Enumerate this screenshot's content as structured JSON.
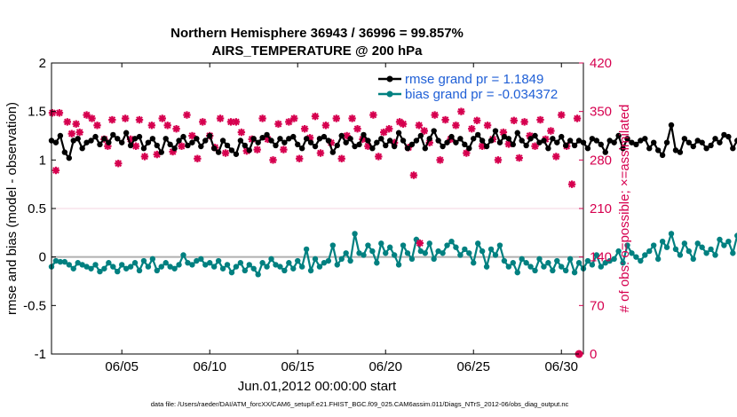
{
  "colors": {
    "rmse": "#000000",
    "bias": "#008080",
    "obs": "#d6004f",
    "zero_line": "#b0b0b0",
    "grid": "#f0c8d6",
    "legend_text": "#1f5fd6",
    "right_axis": "#d6004f"
  },
  "chart_data": {
    "type": "line",
    "title": "Northern Hemisphere 36943 / 36996 = 99.857%",
    "subtitle": "AIRS_TEMPERATURE @ 200 hPa",
    "xlabel": "Jun.01,2012 00:00:00 start",
    "ylabel_left": "rmse and bias (model - observation)",
    "ylabel_right": "# of obs: o=possible; ×=assimilated",
    "xlim": [
      1,
      31.25
    ],
    "ylim_left": [
      -1,
      2
    ],
    "ylim_right": [
      0,
      420
    ],
    "x_ticks": [
      5,
      10,
      15,
      20,
      25,
      30
    ],
    "x_tick_labels": [
      "06/05",
      "06/10",
      "06/15",
      "06/20",
      "06/25",
      "06/30"
    ],
    "y_ticks_left": [
      -1,
      -0.5,
      0,
      0.5,
      1,
      1.5,
      2
    ],
    "y_tick_labels_left": [
      "-1",
      "-0.5",
      "0",
      "0.5",
      "1",
      "1.5",
      "2"
    ],
    "y_ticks_right": [
      0,
      70,
      140,
      210,
      280,
      350,
      420
    ],
    "y_tick_labels_right": [
      "0",
      "70",
      "140",
      "210",
      "280",
      "350",
      "420"
    ],
    "x_start": 1.0,
    "x_step": 0.25,
    "series": [
      {
        "name": "rmse grand pr = 1.1849",
        "axis": "left",
        "values": [
          1.2,
          1.18,
          1.25,
          1.08,
          1.02,
          1.2,
          1.22,
          1.12,
          1.18,
          1.2,
          1.24,
          1.16,
          1.22,
          1.18,
          1.26,
          1.22,
          1.18,
          1.28,
          1.15,
          1.22,
          1.24,
          1.12,
          1.18,
          1.22,
          1.15,
          1.08,
          1.22,
          1.16,
          1.12,
          1.2,
          1.24,
          1.15,
          1.18,
          1.22,
          1.14,
          1.2,
          1.25,
          1.12,
          1.08,
          1.2,
          1.15,
          1.1,
          1.06,
          1.2,
          1.15,
          1.1,
          1.22,
          1.18,
          1.23,
          1.26,
          1.2,
          1.15,
          1.22,
          1.18,
          1.22,
          1.24,
          1.16,
          1.12,
          1.22,
          1.18,
          1.14,
          1.22,
          1.24,
          1.2,
          1.08,
          1.15,
          1.25,
          1.18,
          1.22,
          1.14,
          1.16,
          1.26,
          1.2,
          1.12,
          1.18,
          1.22,
          1.15,
          1.2,
          1.14,
          1.28,
          1.2,
          1.12,
          1.16,
          1.2,
          1.25,
          1.12,
          1.22,
          1.3,
          1.2,
          1.14,
          1.18,
          1.24,
          1.18,
          1.22,
          1.16,
          1.12,
          1.22,
          1.26,
          1.2,
          1.14,
          1.2,
          1.3,
          1.18,
          1.24,
          1.22,
          1.16,
          1.28,
          1.2,
          1.15,
          1.22,
          1.25,
          1.18,
          1.2,
          1.12,
          1.22,
          1.18,
          1.24,
          1.15,
          1.2,
          1.15,
          1.2,
          1.18,
          1.12,
          1.22,
          1.2,
          1.16,
          1.08,
          1.2,
          1.18,
          1.25,
          1.12,
          1.22,
          1.18,
          1.16,
          1.2,
          1.22,
          1.12,
          1.18,
          1.1,
          1.05,
          1.18,
          1.36,
          1.1,
          1.08,
          1.22,
          1.18,
          1.14,
          1.2,
          1.18,
          1.12,
          1.15,
          1.22,
          1.18,
          1.26,
          1.24,
          1.12,
          1.2,
          1.25,
          1.22
        ],
        "color": "#000000"
      },
      {
        "name": "bias grand pr = -0.034372",
        "axis": "left",
        "values": [
          -0.1,
          -0.04,
          -0.05,
          -0.05,
          -0.08,
          -0.12,
          -0.06,
          -0.08,
          -0.1,
          -0.12,
          -0.08,
          -0.15,
          -0.12,
          -0.06,
          -0.1,
          -0.15,
          -0.08,
          -0.12,
          -0.1,
          -0.06,
          -0.14,
          -0.04,
          -0.1,
          -0.02,
          -0.14,
          -0.1,
          -0.06,
          -0.1,
          -0.12,
          -0.08,
          0.02,
          -0.06,
          -0.08,
          -0.04,
          -0.02,
          -0.08,
          -0.06,
          -0.1,
          -0.04,
          -0.12,
          -0.08,
          -0.16,
          -0.1,
          -0.06,
          -0.14,
          -0.08,
          -0.12,
          -0.18,
          -0.06,
          -0.1,
          -0.02,
          -0.08,
          -0.1,
          -0.14,
          -0.06,
          -0.12,
          -0.04,
          -0.1,
          0.08,
          -0.14,
          -0.02,
          -0.1,
          -0.06,
          -0.04,
          0.12,
          -0.08,
          -0.02,
          0.04,
          -0.04,
          0.24,
          0.04,
          0.02,
          0.12,
          0.06,
          -0.06,
          0.14,
          0.04,
          0.1,
          0.02,
          -0.08,
          0.12,
          0.04,
          -0.02,
          0.18,
          0.06,
          0.04,
          0.14,
          -0.02,
          0.06,
          0.04,
          0.12,
          0.16,
          0.1,
          0.02,
          0.08,
          0.04,
          -0.06,
          0.14,
          0.06,
          -0.1,
          0.08,
          0.02,
          0.12,
          -0.04,
          -0.1,
          -0.06,
          -0.16,
          -0.02,
          -0.06,
          -0.1,
          -0.14,
          -0.02,
          -0.1,
          -0.06,
          -0.14,
          -0.04,
          -0.1,
          -0.14,
          -0.02,
          -0.16,
          -0.06,
          -0.12,
          -0.04,
          -0.08,
          0.02,
          -0.1,
          -0.06,
          -0.04,
          -0.02,
          0.06,
          -0.06,
          0.12,
          0.04,
          0.0,
          -0.04,
          0.02,
          0.06,
          0.12,
          -0.02,
          0.16,
          0.1,
          0.24,
          0.08,
          0.02,
          0.14,
          0.06,
          -0.02,
          0.14,
          0.1,
          0.04,
          0.08,
          0.02,
          0.18,
          0.12,
          0.16,
          0.04,
          0.22,
          -0.04,
          0.12,
          0.04,
          0.08,
          0.12,
          0.16
        ],
        "color": "#008080"
      },
      {
        "name": "# of obs (assimilated)",
        "axis": "right",
        "x": [
          1.05,
          1.25,
          1.45,
          1.9,
          2.15,
          2.4,
          2.6,
          3.0,
          3.3,
          3.6,
          4.0,
          4.2,
          4.45,
          4.8,
          5.2,
          5.5,
          5.8,
          6.0,
          6.3,
          6.7,
          7.0,
          7.3,
          7.6,
          7.9,
          8.1,
          8.4,
          8.7,
          9.0,
          9.3,
          9.6,
          10.0,
          10.3,
          10.6,
          10.9,
          11.2,
          11.5,
          11.8,
          12.1,
          12.4,
          12.7,
          13.0,
          13.3,
          13.6,
          13.9,
          14.2,
          14.5,
          14.8,
          15.1,
          15.4,
          15.7,
          16.0,
          16.3,
          16.6,
          16.9,
          17.2,
          17.5,
          17.8,
          18.1,
          18.4,
          18.7,
          19.0,
          19.3,
          19.6,
          19.9,
          20.2,
          20.5,
          20.8,
          21.0,
          21.3,
          21.6,
          21.9,
          22.2,
          22.5,
          22.8,
          23.1,
          23.4,
          23.7,
          24.0,
          24.3,
          24.6,
          24.9,
          25.2,
          25.5,
          25.8,
          26.1,
          26.4,
          26.7,
          27.0,
          27.3,
          27.6,
          27.9,
          28.2,
          28.5,
          28.8,
          29.1,
          29.4,
          29.7,
          30.0,
          30.3,
          30.6,
          30.9
        ],
        "values": [
          348,
          265,
          348,
          335,
          318,
          332,
          320,
          345,
          340,
          330,
          310,
          300,
          338,
          275,
          340,
          310,
          300,
          338,
          285,
          330,
          288,
          340,
          330,
          292,
          325,
          300,
          345,
          315,
          282,
          335,
          315,
          298,
          340,
          290,
          335,
          335,
          320,
          293,
          310,
          295,
          340,
          310,
          280,
          332,
          295,
          335,
          340,
          282,
          325,
          312,
          343,
          290,
          330,
          305,
          340,
          282,
          315,
          340,
          325,
          310,
          300,
          345,
          285,
          320,
          325,
          305,
          335,
          332,
          298,
          258,
          330,
          322,
          305,
          345,
          280,
          338,
          310,
          330,
          350,
          290,
          325,
          337,
          300,
          330,
          310,
          280,
          320,
          303,
          337,
          283,
          335,
          315,
          300,
          338,
          310,
          322,
          285,
          345,
          300,
          245,
          340
        ],
        "color": "#d6004f"
      }
    ],
    "extra_points": [
      {
        "x": 21.95,
        "value": 160,
        "axis": "right"
      },
      {
        "x": 31.0,
        "value": 0,
        "axis": "right"
      }
    ],
    "legend": [
      "rmse grand pr = 1.1849",
      "bias grand pr = -0.034372"
    ],
    "legend_position": "top-right",
    "grid": false,
    "footnote": "data file: /Users/raeder/DAI/ATM_forcXX/CAM6_setup/f.e21.FHIST_BGC.f09_025.CAM6assim.011/Diags_NTrS_2012-06/obs_diag_output.nc"
  }
}
